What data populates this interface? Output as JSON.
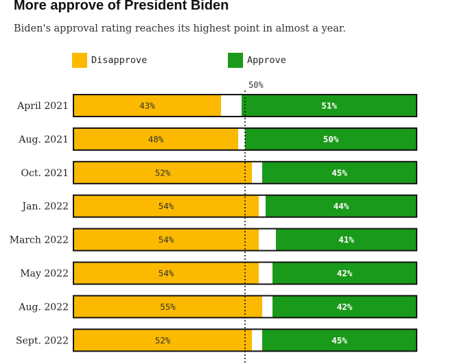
{
  "chart_data": {
    "type": "bar",
    "orientation": "horizontal",
    "stacked": true,
    "title": "More approve of President Biden",
    "subtitle": "Biden's approval rating reaches its highest point in almost a year.",
    "categories": [
      "April 2021",
      "Aug. 2021",
      "Oct. 2021",
      "Jan. 2022",
      "March 2022",
      "May 2022",
      "Aug. 2022",
      "Sept. 2022"
    ],
    "series": [
      {
        "name": "Disapprove",
        "color": "#fbb900",
        "values": [
          43,
          48,
          52,
          54,
          54,
          54,
          55,
          52
        ],
        "labels": [
          "43%",
          "48%",
          "52%",
          "54%",
          "54%",
          "54%",
          "55%",
          "52%"
        ]
      },
      {
        "name": "Approve",
        "color": "#1a9a1a",
        "values": [
          51,
          50,
          45,
          44,
          41,
          42,
          42,
          45
        ],
        "labels": [
          "51%",
          "50%",
          "45%",
          "44%",
          "41%",
          "42%",
          "42%",
          "45%"
        ]
      }
    ],
    "xlim": [
      0,
      100
    ],
    "reference_line": {
      "value": 50,
      "label": "50%"
    },
    "legend": "top-left",
    "grid": false
  }
}
